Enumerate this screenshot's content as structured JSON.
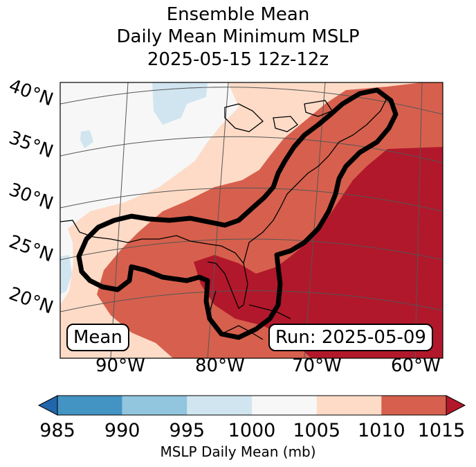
{
  "title": {
    "line1": "Ensemble Mean",
    "line2": "Daily Mean Minimum MSLP",
    "line3": "2025-05-15 12z-12z"
  },
  "map": {
    "lat_labels": [
      "40°N",
      "35°N",
      "30°N",
      "25°N",
      "20°N"
    ],
    "lon_labels": [
      "90°W",
      "80°W",
      "70°W",
      "60°W"
    ],
    "mean_box": "Mean",
    "run_box": "Run: 2025-05-09"
  },
  "colorbar": {
    "ticks": [
      "985",
      "990",
      "995",
      "1000",
      "1005",
      "1010",
      "1015"
    ],
    "colors": [
      "#2166ac",
      "#4393c3",
      "#92c5de",
      "#d1e5f0",
      "#f7f7f7",
      "#fddbc7",
      "#d6604d",
      "#b2182b"
    ],
    "label": "MSLP Daily Mean (mb)"
  }
}
